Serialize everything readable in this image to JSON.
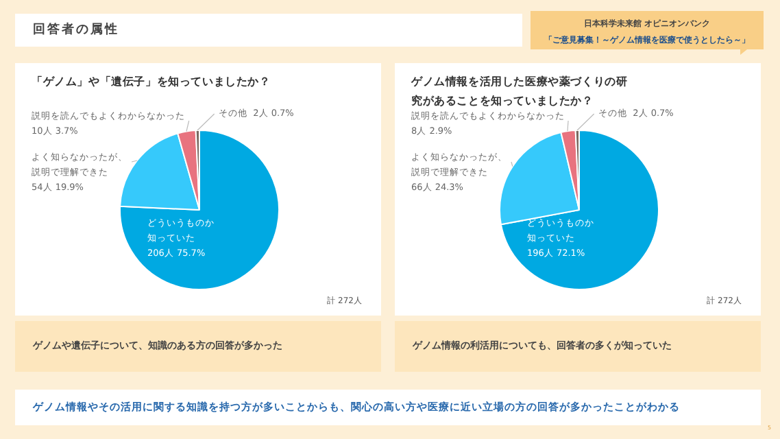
{
  "chart_data": [
    {
      "type": "pie",
      "title": "「ゲノム」や「遺伝子」を知っていましたか？",
      "categories": [
        "どういうものか知っていた",
        "よく知らなかったが、説明で理解できた",
        "説明を読んでもよくわからなかった",
        "その他"
      ],
      "values": [
        206,
        54,
        10,
        2
      ],
      "value_labels": [
        "206人 75.7%",
        "54人 19.9%",
        "10人 3.7%",
        "2人 0.7%"
      ],
      "colors": [
        "#00a9e2",
        "#36c9fb",
        "#e8737f",
        "#7a6a62"
      ],
      "annotations": [
        "計 272人",
        "ゲノムや遺伝子について、知識のある方の回答が多かった"
      ]
    },
    {
      "type": "pie",
      "title": "ゲノム情報を活用した医療や薬づくりの研究があることを知っていましたか？",
      "categories": [
        "どういうものか知っていた",
        "よく知らなかったが、説明で理解できた",
        "説明を読んでもよくわからなかった",
        "その他"
      ],
      "values": [
        196,
        66,
        8,
        2
      ],
      "value_labels": [
        "196人 72.1%",
        "66人 24.3%",
        "8人 2.9%",
        "2人 0.7%"
      ],
      "colors": [
        "#00a9e2",
        "#36c9fb",
        "#e8737f",
        "#7a6a62"
      ],
      "annotations": [
        "計 272人",
        "ゲノム情報の利活用についても、回答者の多くが知っていた"
      ]
    },
    {
      "type": "other",
      "title": "回答者の属性",
      "annotations": [
        "日本科学未来館 オピニオンバンク",
        "「ご意見募集！～ゲノム情報を医療で使うとしたら～」",
        "ゲノム情報やその活用に関する知識を持つ方が多いことからも、関心の高い方や医療に近い立場の方の回答が多かったことがわかる",
        "5"
      ]
    }
  ]
}
